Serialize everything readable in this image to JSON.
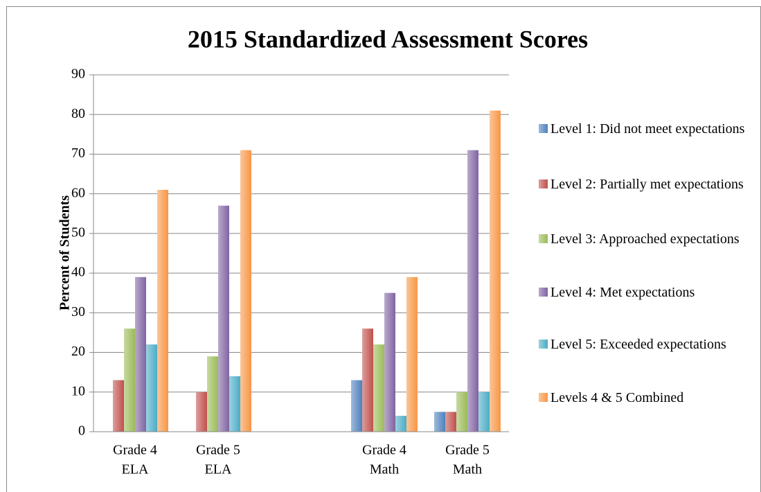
{
  "chart_data": {
    "type": "bar",
    "title": "2015 Standardized Assessment Scores",
    "ylabel": "Percent of Students",
    "categories": [
      [
        "Grade 4",
        "ELA"
      ],
      [
        "Grade 5",
        "ELA"
      ],
      null,
      [
        "Grade 4",
        "Math"
      ],
      [
        "Grade 5",
        "Math"
      ]
    ],
    "series": [
      {
        "name": "Level 1: Did not meet expectations",
        "color": "#4f81bd",
        "values": [
          0,
          0,
          null,
          13,
          5
        ]
      },
      {
        "name": "Level 2: Partially met expectations",
        "color": "#c0504d",
        "values": [
          13,
          10,
          null,
          26,
          5
        ]
      },
      {
        "name": "Level 3: Approached expectations",
        "color": "#9bbb59",
        "values": [
          26,
          19,
          null,
          22,
          10
        ]
      },
      {
        "name": "Level 4: Met expectations",
        "color": "#8064a2",
        "values": [
          39,
          57,
          null,
          35,
          71
        ]
      },
      {
        "name": "Level 5: Exceeded expectations",
        "color": "#4bacc6",
        "values": [
          22,
          14,
          null,
          4,
          10
        ]
      },
      {
        "name": "Levels 4 & 5 Combined",
        "color": "#f79646",
        "values": [
          61,
          71,
          null,
          39,
          81
        ]
      }
    ],
    "ylim": [
      0,
      90
    ],
    "yticks": [
      0,
      10,
      20,
      30,
      40,
      50,
      60,
      70,
      80,
      90
    ],
    "grid": true,
    "legend": "right"
  }
}
